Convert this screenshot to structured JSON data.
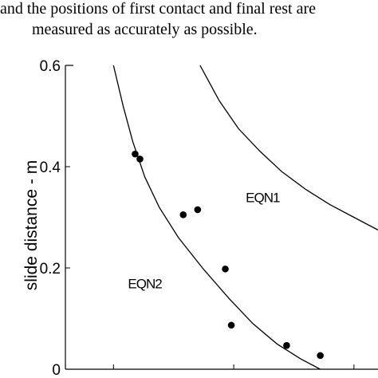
{
  "text": {
    "line1": "and the positions of first contact and final rest are",
    "line2": "measured as accurately as possible."
  },
  "chart_data": {
    "type": "scatter",
    "title": "",
    "xlabel": "",
    "ylabel": "slide distance - m",
    "ylim": [
      0,
      0.6
    ],
    "yticks": [
      0,
      0.2,
      0.4,
      0.6
    ],
    "ytick_labels": [
      "0",
      "0.2",
      "0.4",
      "0.6"
    ],
    "grid": false,
    "legend": "none",
    "points": [
      {
        "x": 0.09,
        "y": 0.425
      },
      {
        "x": 0.11,
        "y": 0.415
      },
      {
        "x": 0.29,
        "y": 0.305
      },
      {
        "x": 0.35,
        "y": 0.315
      },
      {
        "x": 0.465,
        "y": 0.198
      },
      {
        "x": 0.49,
        "y": 0.087
      },
      {
        "x": 0.72,
        "y": 0.047
      },
      {
        "x": 0.86,
        "y": 0.027
      }
    ],
    "curves": [
      {
        "label": "EQN1",
        "label_at": {
          "x": 0.55,
          "y": 0.33
        },
        "points": [
          [
            0.36,
            0.6
          ],
          [
            0.44,
            0.53
          ],
          [
            0.52,
            0.475
          ],
          [
            0.61,
            0.43
          ],
          [
            0.7,
            0.39
          ],
          [
            0.8,
            0.355
          ],
          [
            0.9,
            0.325
          ],
          [
            1.0,
            0.3
          ],
          [
            1.1,
            0.275
          ]
        ]
      },
      {
        "label": "EQN2",
        "label_at": {
          "x": 0.06,
          "y": 0.16
        },
        "points": [
          [
            0.0,
            0.6
          ],
          [
            0.04,
            0.52
          ],
          [
            0.08,
            0.45
          ],
          [
            0.13,
            0.38
          ],
          [
            0.19,
            0.32
          ],
          [
            0.27,
            0.26
          ],
          [
            0.37,
            0.2
          ],
          [
            0.48,
            0.14
          ],
          [
            0.58,
            0.09
          ],
          [
            0.68,
            0.05
          ],
          [
            0.78,
            0.02
          ],
          [
            0.86,
            0.0
          ]
        ]
      }
    ]
  }
}
